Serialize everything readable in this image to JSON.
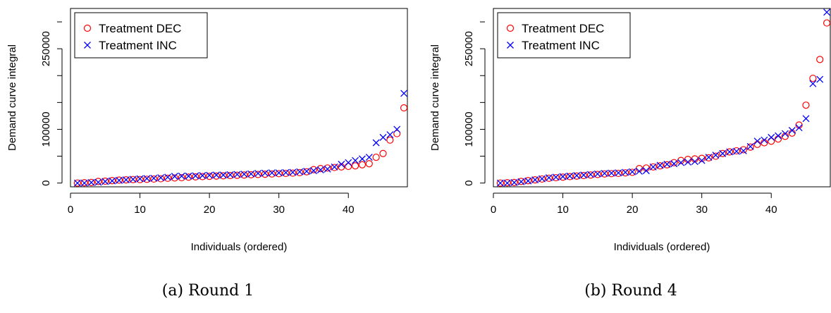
{
  "colors": {
    "dec": "#ff0000",
    "inc": "#0000ff",
    "axis": "#000000"
  },
  "chart_data": [
    {
      "type": "scatter",
      "caption": "(a) Round 1",
      "xlabel": "Individuals (ordered)",
      "ylabel": "Demand curve integral",
      "xlim": [
        0,
        48.5
      ],
      "ylim": [
        -7000,
        325000
      ],
      "xticks": [
        0,
        10,
        20,
        30,
        40
      ],
      "yticks": [
        0,
        100000,
        250000
      ],
      "ytick_labels": [
        "0",
        "100000",
        "250000"
      ],
      "legend_position": "top-left",
      "grid": false,
      "series": [
        {
          "name": "Treatment DEC",
          "marker": "circle",
          "color": "#ff0000",
          "x": [
            1,
            2,
            3,
            4,
            5,
            6,
            7,
            8,
            9,
            10,
            11,
            12,
            13,
            14,
            15,
            16,
            17,
            18,
            19,
            20,
            21,
            22,
            23,
            24,
            25,
            26,
            27,
            28,
            29,
            30,
            31,
            32,
            33,
            34,
            35,
            36,
            37,
            38,
            39,
            40,
            41,
            42,
            43,
            44,
            45,
            46,
            47,
            48
          ],
          "y": [
            0,
            500,
            1000,
            3000,
            3500,
            4500,
            5500,
            6000,
            6500,
            6500,
            7000,
            7500,
            8000,
            9000,
            9500,
            10000,
            11000,
            11500,
            12000,
            12500,
            13000,
            13500,
            14000,
            14500,
            15000,
            15500,
            16000,
            16500,
            17000,
            17500,
            18000,
            18500,
            19500,
            21000,
            25000,
            27000,
            28000,
            29000,
            30000,
            31000,
            32000,
            34000,
            36000,
            48000,
            55000,
            80000,
            92000,
            140000
          ]
        },
        {
          "name": "Treatment INC",
          "marker": "cross",
          "color": "#0000ff",
          "x": [
            1,
            2,
            3,
            4,
            5,
            6,
            7,
            8,
            9,
            10,
            11,
            12,
            13,
            14,
            15,
            16,
            17,
            18,
            19,
            20,
            21,
            22,
            23,
            24,
            25,
            26,
            27,
            28,
            29,
            30,
            31,
            32,
            33,
            34,
            35,
            36,
            37,
            38,
            39,
            40,
            41,
            42,
            43,
            44,
            45,
            46,
            47,
            48
          ],
          "y": [
            0,
            0,
            1000,
            1500,
            3000,
            4000,
            5000,
            6000,
            7000,
            8000,
            8500,
            9000,
            10000,
            11000,
            12500,
            13000,
            13000,
            13500,
            14000,
            14500,
            15000,
            15000,
            15500,
            16000,
            16500,
            17000,
            18000,
            18500,
            19000,
            19000,
            19500,
            20000,
            21000,
            22000,
            23000,
            24500,
            26000,
            30000,
            35000,
            38000,
            42000,
            45000,
            48000,
            75000,
            85000,
            90000,
            100000,
            167000
          ]
        }
      ]
    },
    {
      "type": "scatter",
      "caption": "(b) Round 4",
      "xlabel": "Individuals (ordered)",
      "ylabel": "Demand curve integral",
      "xlim": [
        0,
        48.5
      ],
      "ylim": [
        -7000,
        325000
      ],
      "xticks": [
        0,
        10,
        20,
        30,
        40
      ],
      "yticks": [
        0,
        100000,
        250000
      ],
      "ytick_labels": [
        "0",
        "100000",
        "250000"
      ],
      "legend_position": "top-left",
      "grid": false,
      "series": [
        {
          "name": "Treatment DEC",
          "marker": "circle",
          "color": "#ff0000",
          "x": [
            1,
            2,
            3,
            4,
            5,
            6,
            7,
            8,
            9,
            10,
            11,
            12,
            13,
            14,
            15,
            16,
            17,
            18,
            19,
            20,
            21,
            22,
            23,
            24,
            25,
            26,
            27,
            28,
            29,
            30,
            31,
            32,
            33,
            34,
            35,
            36,
            37,
            38,
            39,
            40,
            41,
            42,
            43,
            44,
            45,
            46,
            47,
            48
          ],
          "y": [
            0,
            500,
            1000,
            3000,
            4500,
            6000,
            7500,
            9000,
            10000,
            11000,
            12000,
            13000,
            14000,
            15000,
            16000,
            17000,
            17500,
            18000,
            19000,
            20000,
            27000,
            28000,
            30000,
            32000,
            34000,
            38000,
            42000,
            44000,
            45000,
            46000,
            47000,
            50000,
            55000,
            58000,
            60000,
            62000,
            67000,
            72000,
            75000,
            78000,
            82000,
            87000,
            93000,
            108000,
            145000,
            195000,
            230000,
            298000
          ]
        },
        {
          "name": "Treatment INC",
          "marker": "cross",
          "color": "#0000ff",
          "x": [
            1,
            2,
            3,
            4,
            5,
            6,
            7,
            8,
            9,
            10,
            11,
            12,
            13,
            14,
            15,
            16,
            17,
            18,
            19,
            20,
            21,
            22,
            23,
            24,
            25,
            26,
            27,
            28,
            29,
            30,
            31,
            32,
            33,
            34,
            35,
            36,
            37,
            38,
            39,
            40,
            41,
            42,
            43,
            44,
            45,
            46,
            47,
            48
          ],
          "y": [
            0,
            0,
            1000,
            2500,
            4000,
            6000,
            8000,
            10000,
            11000,
            12000,
            13000,
            14000,
            15000,
            16000,
            17000,
            18000,
            18500,
            19000,
            20000,
            21000,
            22000,
            23000,
            30000,
            33000,
            35000,
            36000,
            38000,
            39000,
            40000,
            42000,
            48000,
            52000,
            55000,
            58000,
            59000,
            60000,
            68000,
            78000,
            80000,
            85000,
            88000,
            92000,
            98000,
            103000,
            120000,
            185000,
            193000,
            318000
          ]
        }
      ]
    }
  ]
}
